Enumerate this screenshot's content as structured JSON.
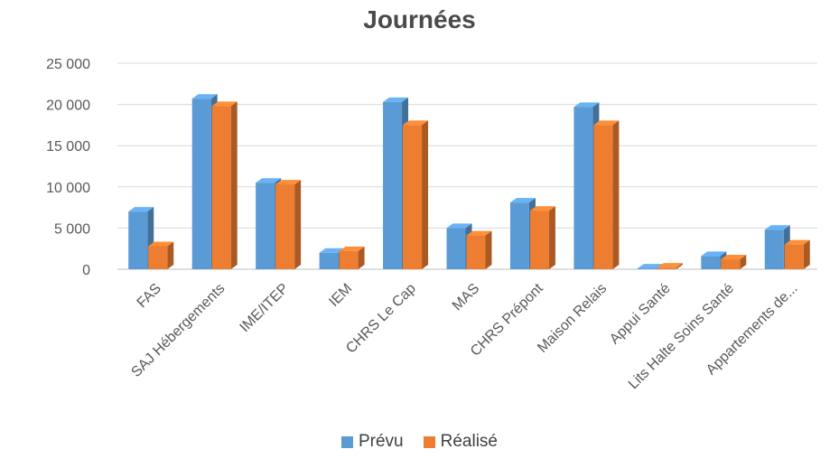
{
  "chart_data": {
    "type": "bar",
    "title": "Journées",
    "categories": [
      "FAS",
      "SAJ Hébergements",
      "IME/ITEP",
      "IEM",
      "CHRS Le Cap",
      "MAS",
      "CHRS Prépont",
      "Maison Relais",
      "Appui Santé",
      "Lits Halte Soins Santé",
      "Appartements de..."
    ],
    "series": [
      {
        "name": "Prévu",
        "color": "#5B9BD5",
        "values": [
          7000,
          20700,
          10500,
          2000,
          20300,
          5000,
          8100,
          19700,
          100,
          1600,
          4800
        ]
      },
      {
        "name": "Réalisé",
        "color": "#ED7D31",
        "values": [
          2800,
          19800,
          10300,
          2200,
          17500,
          4100,
          7100,
          17500,
          200,
          1200,
          3000
        ]
      }
    ],
    "ylim": [
      0,
      25000
    ],
    "yticks": [
      "0",
      "5 000",
      "10 000",
      "15 000",
      "20 000",
      "25 000"
    ],
    "grid": true,
    "legend": "bottom"
  }
}
